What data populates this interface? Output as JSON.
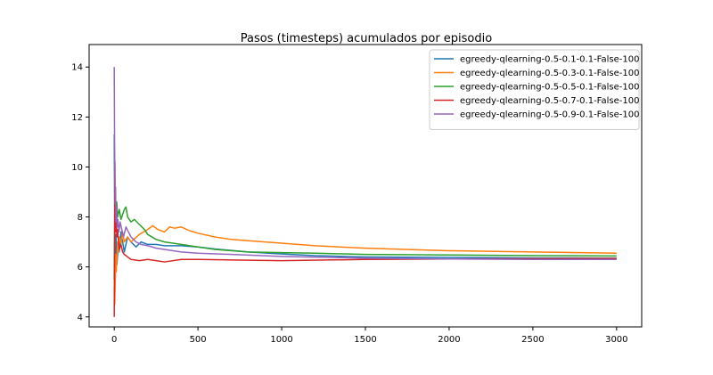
{
  "chart_data": {
    "type": "line",
    "title": "Pasos (timesteps) acumulados por episodio",
    "xlabel": "",
    "ylabel": "",
    "xlim": [
      -150,
      3150
    ],
    "ylim": [
      3.6,
      14.9
    ],
    "xticks": [
      0,
      500,
      1000,
      1500,
      2000,
      2500,
      3000
    ],
    "yticks": [
      4,
      6,
      8,
      10,
      12,
      14
    ],
    "grid": false,
    "legend_position": "top-right",
    "series": [
      {
        "name": "egreedy-qlearning-0.5-0.1-0.1-False-100",
        "color": "#1f77b4",
        "points": [
          [
            0,
            11.3
          ],
          [
            2,
            8.6
          ],
          [
            4,
            6.9
          ],
          [
            6,
            5.8
          ],
          [
            8,
            6.2
          ],
          [
            10,
            7.3
          ],
          [
            13,
            6.7
          ],
          [
            16,
            6.1
          ],
          [
            20,
            6.5
          ],
          [
            25,
            6.9
          ],
          [
            30,
            6.6
          ],
          [
            40,
            7.4
          ],
          [
            50,
            7.0
          ],
          [
            60,
            6.6
          ],
          [
            70,
            6.9
          ],
          [
            80,
            7.2
          ],
          [
            100,
            7.0
          ],
          [
            130,
            6.8
          ],
          [
            160,
            7.0
          ],
          [
            200,
            6.9
          ],
          [
            250,
            6.9
          ],
          [
            300,
            6.85
          ],
          [
            400,
            6.85
          ],
          [
            500,
            6.8
          ],
          [
            600,
            6.72
          ],
          [
            800,
            6.6
          ],
          [
            1000,
            6.52
          ],
          [
            1200,
            6.45
          ],
          [
            1500,
            6.4
          ],
          [
            2000,
            6.38
          ],
          [
            2500,
            6.36
          ],
          [
            3000,
            6.35
          ]
        ]
      },
      {
        "name": "egreedy-qlearning-0.5-0.3-0.1-False-100",
        "color": "#ff7f0e",
        "points": [
          [
            0,
            5.2
          ],
          [
            3,
            4.5
          ],
          [
            6,
            5.3
          ],
          [
            9,
            6.5
          ],
          [
            12,
            5.8
          ],
          [
            16,
            6.4
          ],
          [
            20,
            7.0
          ],
          [
            25,
            6.6
          ],
          [
            30,
            7.2
          ],
          [
            40,
            6.9
          ],
          [
            50,
            7.4
          ],
          [
            60,
            7.0
          ],
          [
            80,
            7.2
          ],
          [
            100,
            7.0
          ],
          [
            150,
            7.3
          ],
          [
            200,
            7.5
          ],
          [
            230,
            7.65
          ],
          [
            260,
            7.5
          ],
          [
            300,
            7.4
          ],
          [
            330,
            7.6
          ],
          [
            360,
            7.55
          ],
          [
            400,
            7.6
          ],
          [
            450,
            7.45
          ],
          [
            500,
            7.35
          ],
          [
            600,
            7.2
          ],
          [
            700,
            7.1
          ],
          [
            800,
            7.05
          ],
          [
            1000,
            6.95
          ],
          [
            1200,
            6.85
          ],
          [
            1500,
            6.75
          ],
          [
            2000,
            6.65
          ],
          [
            2500,
            6.6
          ],
          [
            3000,
            6.55
          ]
        ]
      },
      {
        "name": "egreedy-qlearning-0.5-0.5-0.1-False-100",
        "color": "#2ca02c",
        "points": [
          [
            0,
            5.5
          ],
          [
            2,
            7.5
          ],
          [
            4,
            9.0
          ],
          [
            7,
            8.4
          ],
          [
            10,
            8.2
          ],
          [
            15,
            8.6
          ],
          [
            20,
            8.0
          ],
          [
            30,
            8.3
          ],
          [
            40,
            7.9
          ],
          [
            50,
            8.1
          ],
          [
            60,
            8.3
          ],
          [
            70,
            8.4
          ],
          [
            80,
            8.0
          ],
          [
            100,
            7.8
          ],
          [
            120,
            7.9
          ],
          [
            150,
            7.7
          ],
          [
            180,
            7.5
          ],
          [
            200,
            7.3
          ],
          [
            250,
            7.1
          ],
          [
            300,
            7.0
          ],
          [
            400,
            6.9
          ],
          [
            500,
            6.8
          ],
          [
            600,
            6.7
          ],
          [
            800,
            6.6
          ],
          [
            1000,
            6.57
          ],
          [
            1200,
            6.55
          ],
          [
            1500,
            6.5
          ],
          [
            2000,
            6.48
          ],
          [
            2500,
            6.45
          ],
          [
            3000,
            6.44
          ]
        ]
      },
      {
        "name": "egreedy-qlearning-0.5-0.7-0.1-False-100",
        "color": "#d62728",
        "points": [
          [
            0,
            4.0
          ],
          [
            2,
            7.0
          ],
          [
            4,
            10.2
          ],
          [
            6,
            8.0
          ],
          [
            8,
            7.4
          ],
          [
            12,
            7.8
          ],
          [
            16,
            7.2
          ],
          [
            20,
            7.5
          ],
          [
            25,
            7.0
          ],
          [
            30,
            6.7
          ],
          [
            40,
            6.9
          ],
          [
            50,
            6.6
          ],
          [
            60,
            6.5
          ],
          [
            80,
            6.4
          ],
          [
            100,
            6.3
          ],
          [
            150,
            6.25
          ],
          [
            200,
            6.3
          ],
          [
            250,
            6.25
          ],
          [
            300,
            6.2
          ],
          [
            400,
            6.3
          ],
          [
            500,
            6.3
          ],
          [
            700,
            6.28
          ],
          [
            1000,
            6.25
          ],
          [
            1500,
            6.3
          ],
          [
            2000,
            6.32
          ],
          [
            2500,
            6.33
          ],
          [
            3000,
            6.34
          ]
        ]
      },
      {
        "name": "egreedy-qlearning-0.5-0.9-0.1-False-100",
        "color": "#9467bd",
        "points": [
          [
            0,
            14.0
          ],
          [
            2,
            11.0
          ],
          [
            4,
            9.5
          ],
          [
            6,
            8.5
          ],
          [
            8,
            9.2
          ],
          [
            10,
            7.8
          ],
          [
            14,
            8.4
          ],
          [
            18,
            7.6
          ],
          [
            22,
            7.9
          ],
          [
            28,
            7.4
          ],
          [
            35,
            7.8
          ],
          [
            45,
            7.5
          ],
          [
            55,
            7.2
          ],
          [
            70,
            7.6
          ],
          [
            85,
            7.4
          ],
          [
            100,
            7.2
          ],
          [
            130,
            7.0
          ],
          [
            160,
            6.9
          ],
          [
            200,
            6.85
          ],
          [
            250,
            6.75
          ],
          [
            300,
            6.7
          ],
          [
            400,
            6.6
          ],
          [
            500,
            6.55
          ],
          [
            700,
            6.5
          ],
          [
            1000,
            6.42
          ],
          [
            1500,
            6.35
          ],
          [
            2000,
            6.32
          ],
          [
            2500,
            6.3
          ],
          [
            3000,
            6.3
          ]
        ]
      }
    ]
  }
}
